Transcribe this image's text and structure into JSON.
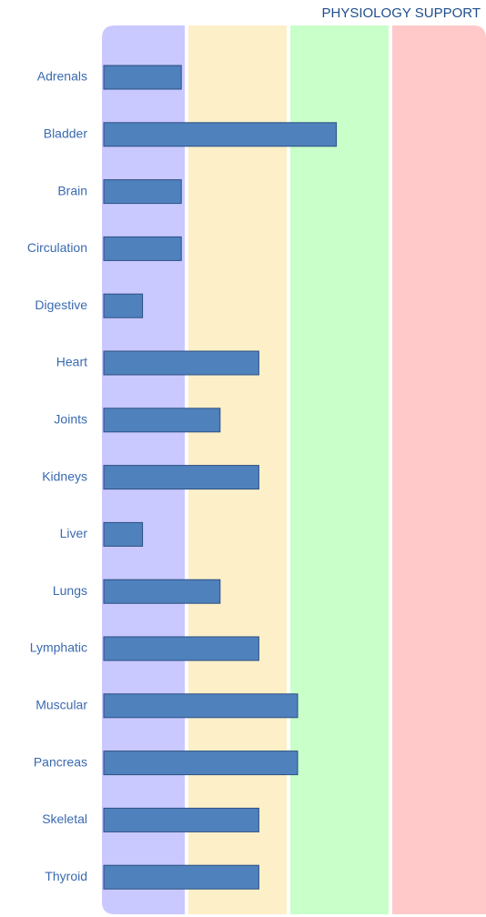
{
  "chart_data": {
    "type": "bar",
    "orientation": "horizontal",
    "title": "PHYSIOLOGY SUPPORT",
    "categories": [
      "Adrenals",
      "Bladder",
      "Brain",
      "Circulation",
      "Digestive",
      "Heart",
      "Joints",
      "Kidneys",
      "Liver",
      "Lungs",
      "Lymphatic",
      "Muscular",
      "Pancreas",
      "Skeletal",
      "Thyroid"
    ],
    "values": [
      2,
      6,
      2,
      2,
      1,
      4,
      3,
      4,
      1,
      3,
      4,
      5,
      5,
      4,
      4
    ],
    "color": "#4f81bd",
    "xlim": [
      0,
      10
    ]
  }
}
